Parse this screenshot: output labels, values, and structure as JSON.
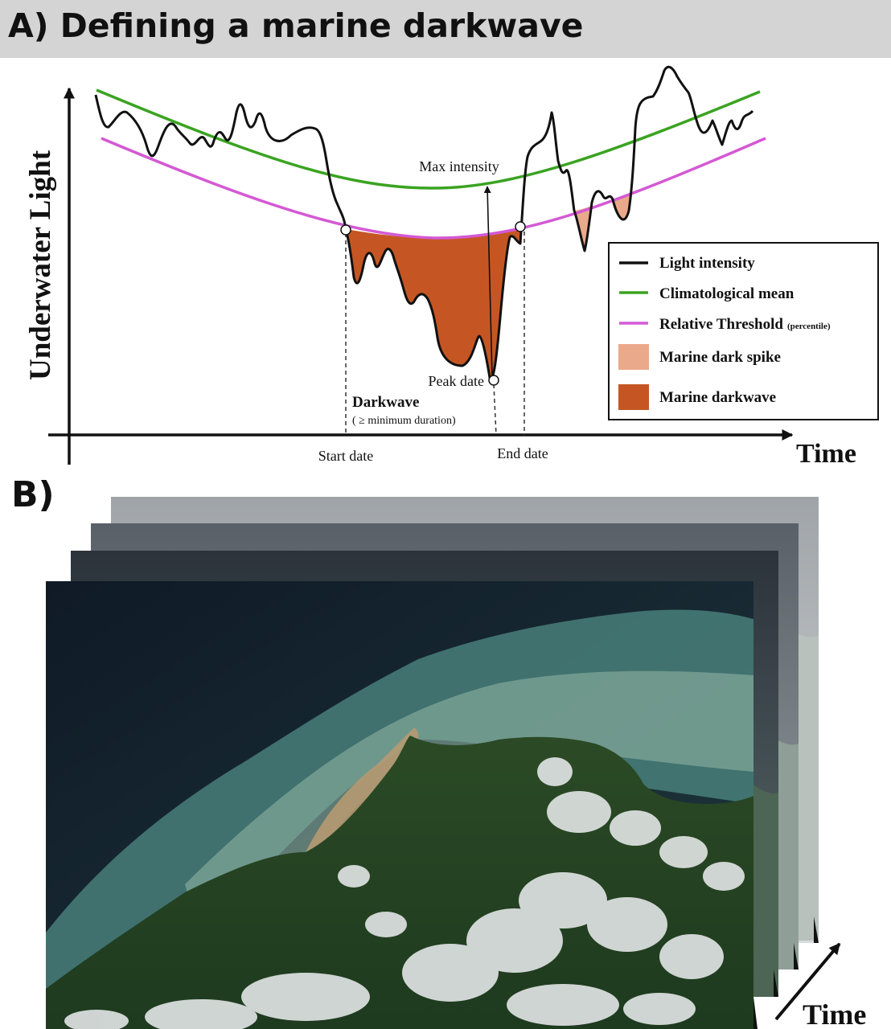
{
  "panel_a": {
    "title": "A) Defining a marine darkwave",
    "y_axis_label": "Underwater Light",
    "x_axis_label": "Time",
    "annotations": {
      "max_intensity": "Max intensity",
      "peak_date": "Peak date",
      "darkwave": "Darkwave",
      "darkwave_note": "( ≥ minimum duration)",
      "start_date": "Start date",
      "end_date": "End date"
    },
    "legend": {
      "light_intensity": "Light intensity",
      "climatological_mean": "Climatological mean",
      "relative_threshold": "Relative Threshold",
      "relative_threshold_note": "(percentile)",
      "marine_dark_spike": "Marine dark spike",
      "marine_darkwave": "Marine darkwave"
    },
    "colors": {
      "light": "#111111",
      "mean": "#3aa321",
      "threshold": "#d459d4",
      "dark_spike": "#eba98b",
      "darkwave": "#c55624"
    }
  },
  "panel_b": {
    "label": "B)",
    "time_label": "Time"
  }
}
